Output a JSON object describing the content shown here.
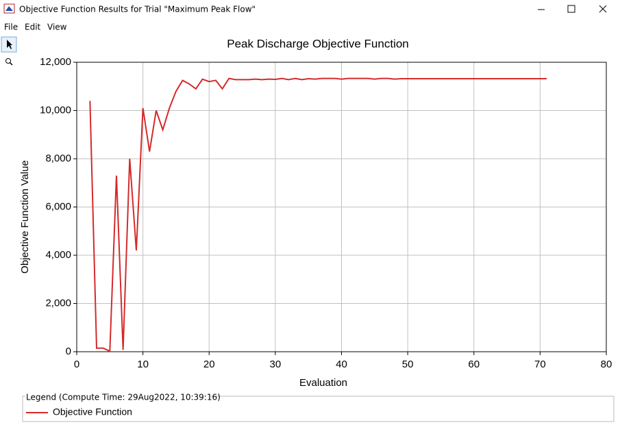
{
  "window": {
    "title": "Objective Function Results for Trial \"Maximum Peak Flow\""
  },
  "menu": [
    "File",
    "Edit",
    "View"
  ],
  "legend_title": "Legend (Compute Time: 29Aug2022, 10:39:16)",
  "chart_data": {
    "type": "line",
    "title": "Peak Discharge Objective Function",
    "x_label": "Evaluation",
    "y_label": "Objective Function Value",
    "x": [
      2,
      3,
      4,
      5,
      6,
      7,
      8,
      9,
      10,
      11,
      12,
      13,
      14,
      15,
      16,
      17,
      18,
      19,
      20,
      21,
      22,
      23,
      24,
      25,
      26,
      27,
      28,
      29,
      30,
      31,
      32,
      33,
      34,
      35,
      36,
      37,
      38,
      39,
      40,
      41,
      42,
      43,
      44,
      45,
      46,
      47,
      48,
      49,
      50,
      51,
      52,
      53,
      54,
      55,
      56,
      57,
      58,
      59,
      60,
      61,
      62,
      63,
      64,
      65,
      66,
      67,
      68,
      69,
      70,
      71
    ],
    "series": [
      {
        "name": "Objective Function",
        "color": "#d42a2a",
        "values": [
          10400,
          150,
          150,
          20,
          7300,
          80,
          8000,
          4200,
          10100,
          8300,
          10000,
          9200,
          10100,
          10800,
          11250,
          11100,
          10900,
          11300,
          11200,
          11250,
          10900,
          11330,
          11280,
          11280,
          11280,
          11300,
          11280,
          11300,
          11290,
          11330,
          11280,
          11330,
          11280,
          11320,
          11300,
          11330,
          11330,
          11330,
          11300,
          11330,
          11330,
          11330,
          11330,
          11300,
          11330,
          11330,
          11300,
          11320,
          11320,
          11320,
          11320,
          11320,
          11320,
          11320,
          11320,
          11320,
          11320,
          11320,
          11320,
          11320,
          11320,
          11320,
          11320,
          11320,
          11320,
          11320,
          11320,
          11320,
          11320,
          11320
        ]
      }
    ],
    "xlim": [
      0,
      80
    ],
    "xticks": [
      0,
      10,
      20,
      30,
      40,
      50,
      60,
      70,
      80
    ],
    "ylim": [
      0,
      12000
    ],
    "yticks": [
      0,
      {
        "value": 2000,
        "label": "2,000"
      },
      {
        "value": 4000,
        "label": "4,000"
      },
      {
        "value": 6000,
        "label": "6,000"
      },
      {
        "value": 8000,
        "label": "8,000"
      },
      {
        "value": 10000,
        "label": "10,000"
      },
      {
        "value": 12000,
        "label": "12,000"
      }
    ],
    "grid": true
  }
}
